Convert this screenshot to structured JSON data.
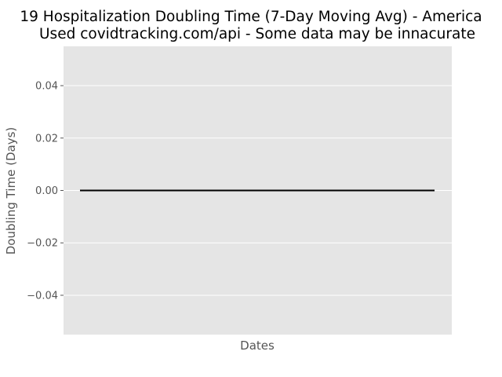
{
  "chart_data": {
    "type": "line",
    "title_line1": "19 Hospitalization Doubling Time (7-Day Moving Avg) - America",
    "title_line2": "Used covidtracking.com/api - Some data may be innacurate",
    "xlabel": "Dates",
    "ylabel": "Doubling Time (Days)",
    "ylim": [
      -0.055,
      0.055
    ],
    "yticks": [
      {
        "value": 0.04,
        "label": "0.04"
      },
      {
        "value": 0.02,
        "label": "0.02"
      },
      {
        "value": 0.0,
        "label": "0.00"
      },
      {
        "value": -0.02,
        "label": "−0.02"
      },
      {
        "value": -0.04,
        "label": "−0.04"
      }
    ],
    "grid": true,
    "series": [
      {
        "values": [
          0,
          0
        ],
        "color": "#000000"
      }
    ]
  }
}
